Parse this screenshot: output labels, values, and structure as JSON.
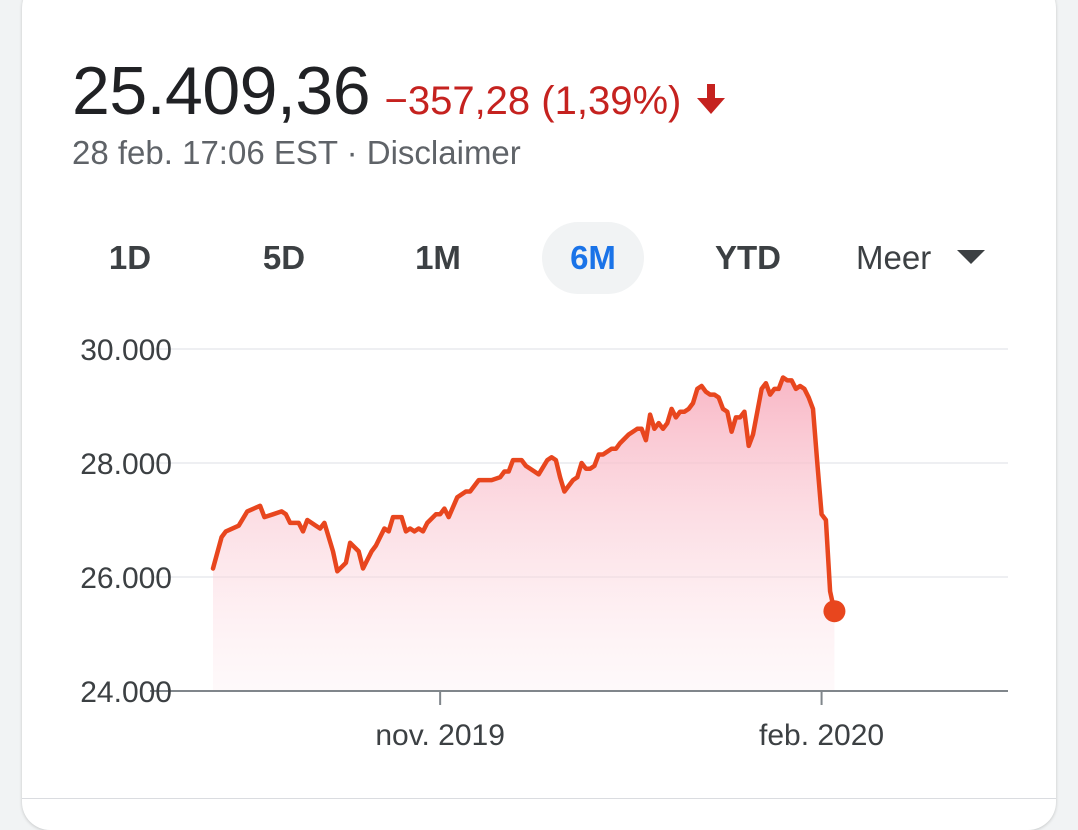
{
  "quote": {
    "price": "25.409,36",
    "change": "−357,28 (1,39%)",
    "direction_icon": "arrow-down-icon",
    "timestamp": "28 feb. 17:06 EST",
    "separator": "·",
    "disclaimer": "Disclaimer"
  },
  "tabs": [
    {
      "label": "1D",
      "active": false
    },
    {
      "label": "5D",
      "active": false
    },
    {
      "label": "1M",
      "active": false
    },
    {
      "label": "6M",
      "active": true
    },
    {
      "label": "YTD",
      "active": false
    }
  ],
  "more": {
    "label": "Meer",
    "icon": "caret-down-icon"
  },
  "colors": {
    "down": "#c5221f",
    "line": "#e8461e",
    "fill_top": "#f8b4c3",
    "active_tab": "#1a73e8"
  },
  "chart_data": {
    "type": "area",
    "y_ticks": [
      "30.000",
      "28.000",
      "26.000",
      "24.000"
    ],
    "y_tick_values": [
      30000,
      28000,
      26000,
      24000
    ],
    "ylim": [
      24000,
      30000
    ],
    "x_ticks": [
      {
        "label": "nov. 2019",
        "x": 53
      },
      {
        "label": "feb. 2020",
        "x": 142
      }
    ],
    "xlim": [
      0,
      182
    ],
    "grid": true,
    "series": [
      {
        "values": [
          [
            0,
            26150
          ],
          [
            2,
            26700
          ],
          [
            3,
            26800
          ],
          [
            6,
            26900
          ],
          [
            8,
            27150
          ],
          [
            11,
            27250
          ],
          [
            12,
            27050
          ],
          [
            14,
            27100
          ],
          [
            16,
            27150
          ],
          [
            17,
            27100
          ],
          [
            18,
            26950
          ],
          [
            20,
            26950
          ],
          [
            21,
            26800
          ],
          [
            22,
            27000
          ],
          [
            24,
            26900
          ],
          [
            25,
            26850
          ],
          [
            26,
            26950
          ],
          [
            28,
            26450
          ],
          [
            29,
            26100
          ],
          [
            31,
            26250
          ],
          [
            32,
            26600
          ],
          [
            34,
            26450
          ],
          [
            35,
            26150
          ],
          [
            37,
            26450
          ],
          [
            38,
            26550
          ],
          [
            40,
            26850
          ],
          [
            41,
            26800
          ],
          [
            42,
            27050
          ],
          [
            44,
            27050
          ],
          [
            45,
            26800
          ],
          [
            46,
            26850
          ],
          [
            47,
            26800
          ],
          [
            48,
            26850
          ],
          [
            49,
            26800
          ],
          [
            50,
            26950
          ],
          [
            52,
            27100
          ],
          [
            53,
            27100
          ],
          [
            54,
            27200
          ],
          [
            55,
            27050
          ],
          [
            57,
            27400
          ],
          [
            59,
            27500
          ],
          [
            60,
            27500
          ],
          [
            62,
            27700
          ],
          [
            64,
            27700
          ],
          [
            65,
            27700
          ],
          [
            67,
            27750
          ],
          [
            68,
            27850
          ],
          [
            69,
            27850
          ],
          [
            70,
            28050
          ],
          [
            72,
            28050
          ],
          [
            73,
            27950
          ],
          [
            75,
            27850
          ],
          [
            76,
            27800
          ],
          [
            78,
            28050
          ],
          [
            79,
            28100
          ],
          [
            80,
            28050
          ],
          [
            81,
            27750
          ],
          [
            82,
            27500
          ],
          [
            84,
            27700
          ],
          [
            85,
            27750
          ],
          [
            86,
            28000
          ],
          [
            87,
            27900
          ],
          [
            88,
            27900
          ],
          [
            89,
            27950
          ],
          [
            90,
            28150
          ],
          [
            91,
            28150
          ],
          [
            92,
            28200
          ],
          [
            93,
            28250
          ],
          [
            94,
            28250
          ],
          [
            95,
            28350
          ],
          [
            97,
            28500
          ],
          [
            99,
            28600
          ],
          [
            100,
            28600
          ],
          [
            101,
            28400
          ],
          [
            102,
            28850
          ],
          [
            103,
            28600
          ],
          [
            104,
            28700
          ],
          [
            105,
            28600
          ],
          [
            106,
            28700
          ],
          [
            107,
            28950
          ],
          [
            108,
            28800
          ],
          [
            109,
            28900
          ],
          [
            110,
            28900
          ],
          [
            111,
            28950
          ],
          [
            112,
            29050
          ],
          [
            113,
            29300
          ],
          [
            114,
            29350
          ],
          [
            115,
            29250
          ],
          [
            116,
            29200
          ],
          [
            117,
            29200
          ],
          [
            118,
            29150
          ],
          [
            119,
            28950
          ],
          [
            120,
            28900
          ],
          [
            121,
            28550
          ],
          [
            122,
            28800
          ],
          [
            123,
            28800
          ],
          [
            124,
            28900
          ],
          [
            125,
            28300
          ],
          [
            126,
            28500
          ],
          [
            128,
            29300
          ],
          [
            129,
            29400
          ],
          [
            130,
            29200
          ],
          [
            131,
            29300
          ],
          [
            132,
            29300
          ],
          [
            133,
            29500
          ],
          [
            134,
            29450
          ],
          [
            135,
            29450
          ],
          [
            136,
            29300
          ],
          [
            137,
            29350
          ],
          [
            138,
            29300
          ],
          [
            139,
            29150
          ],
          [
            140,
            28950
          ],
          [
            141,
            28000
          ],
          [
            142,
            27100
          ],
          [
            143,
            27000
          ],
          [
            144,
            25750
          ],
          [
            145,
            25400
          ]
        ]
      }
    ]
  }
}
